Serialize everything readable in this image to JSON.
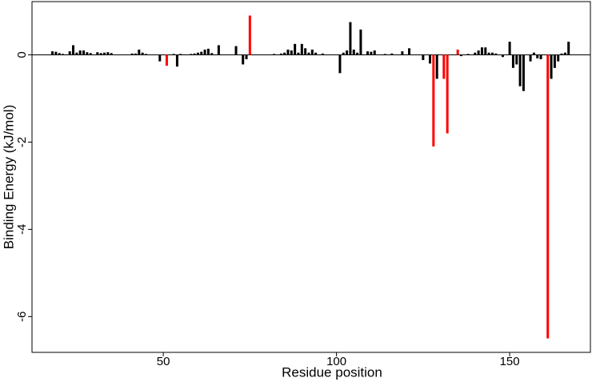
{
  "chart_data": {
    "type": "bar",
    "xlabel": "Residue position",
    "ylabel": "Binding Energy (kJ/mol)",
    "x": [
      18,
      19,
      20,
      21,
      23,
      24,
      25,
      26,
      27,
      28,
      29,
      31,
      32,
      33,
      34,
      35,
      41,
      42,
      43,
      44,
      45,
      49,
      51,
      53,
      54,
      55,
      56,
      58,
      59,
      60,
      61,
      62,
      63,
      64,
      66,
      71,
      73,
      74,
      75,
      82,
      84,
      85,
      86,
      87,
      88,
      89,
      90,
      91,
      92,
      93,
      94,
      96,
      101,
      102,
      103,
      104,
      105,
      106,
      107,
      109,
      110,
      111,
      114,
      116,
      119,
      121,
      125,
      127,
      128,
      129,
      131,
      132,
      135,
      136,
      138,
      140,
      141,
      142,
      143,
      144,
      145,
      146,
      148,
      150,
      151,
      152,
      153,
      154,
      156,
      157,
      158,
      159,
      161,
      162,
      163,
      164,
      165,
      166,
      167
    ],
    "values": [
      0.08,
      0.07,
      0.04,
      0.02,
      0.08,
      0.22,
      0.05,
      0.1,
      0.1,
      0.06,
      0.04,
      0.06,
      0.04,
      0.05,
      0.06,
      0.04,
      0.03,
      0.03,
      0.12,
      0.05,
      0.02,
      -0.15,
      -0.25,
      0.02,
      -0.27,
      0.02,
      0.01,
      0.02,
      0.03,
      0.05,
      0.07,
      0.12,
      0.14,
      0.04,
      0.22,
      0.2,
      -0.22,
      -0.1,
      0.9,
      0.02,
      0.03,
      0.05,
      0.12,
      0.1,
      0.25,
      0.05,
      0.25,
      0.15,
      0.05,
      0.12,
      0.05,
      0.03,
      -0.42,
      0.05,
      0.1,
      0.75,
      0.12,
      0.05,
      0.58,
      0.08,
      0.07,
      0.1,
      0.02,
      0.03,
      0.08,
      0.15,
      -0.12,
      -0.2,
      -2.1,
      -0.55,
      -0.55,
      -1.8,
      0.12,
      -0.03,
      0.02,
      0.05,
      0.1,
      0.17,
      0.17,
      0.05,
      0.05,
      0.03,
      -0.05,
      0.3,
      -0.3,
      -0.22,
      -0.72,
      -0.83,
      -0.15,
      0.05,
      -0.08,
      -0.1,
      -6.5,
      -0.55,
      -0.3,
      -0.15,
      0.03,
      0.05,
      0.3
    ],
    "colors": [
      "#000000",
      "#000000",
      "#000000",
      "#000000",
      "#000000",
      "#000000",
      "#000000",
      "#000000",
      "#000000",
      "#000000",
      "#000000",
      "#000000",
      "#000000",
      "#000000",
      "#000000",
      "#000000",
      "#000000",
      "#000000",
      "#000000",
      "#000000",
      "#000000",
      "#000000",
      "#ff0000",
      "#000000",
      "#000000",
      "#000000",
      "#000000",
      "#000000",
      "#000000",
      "#000000",
      "#000000",
      "#000000",
      "#000000",
      "#000000",
      "#000000",
      "#000000",
      "#000000",
      "#000000",
      "#ff0000",
      "#000000",
      "#000000",
      "#000000",
      "#000000",
      "#000000",
      "#000000",
      "#000000",
      "#000000",
      "#000000",
      "#000000",
      "#000000",
      "#000000",
      "#000000",
      "#000000",
      "#000000",
      "#000000",
      "#000000",
      "#000000",
      "#000000",
      "#000000",
      "#000000",
      "#000000",
      "#000000",
      "#000000",
      "#000000",
      "#000000",
      "#000000",
      "#000000",
      "#000000",
      "#ff0000",
      "#000000",
      "#ff0000",
      "#ff0000",
      "#ff0000",
      "#000000",
      "#000000",
      "#000000",
      "#000000",
      "#000000",
      "#000000",
      "#000000",
      "#000000",
      "#000000",
      "#000000",
      "#000000",
      "#000000",
      "#000000",
      "#000000",
      "#000000",
      "#000000",
      "#000000",
      "#000000",
      "#000000",
      "#ff0000",
      "#000000",
      "#000000",
      "#000000",
      "#000000",
      "#000000",
      "#000000"
    ],
    "xlim": [
      12.1,
      173.3
    ],
    "ylim": [
      -6.82,
      1.22
    ],
    "xticks": [
      50,
      100,
      150
    ],
    "yticks": [
      0,
      -2,
      -4,
      -6
    ]
  }
}
